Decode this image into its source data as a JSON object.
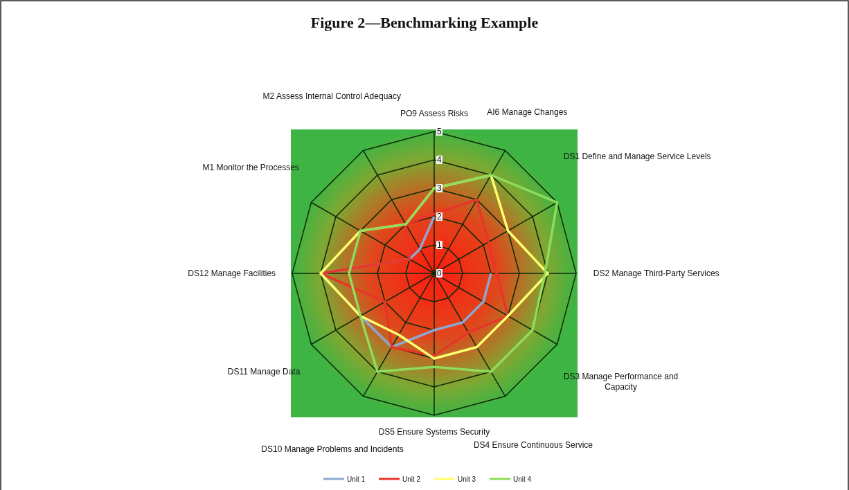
{
  "chart_data": {
    "type": "radar",
    "title": "Figure 2—Benchmarking Example",
    "categories": [
      "PO9 Assess Risks",
      "AI6 Manage Changes",
      "DS1 Define and Manage Service Levels",
      "DS2 Manage Third-Party Services",
      "DS3 Manage Performance and Capacity",
      "DS4 Ensure Continuous Service",
      "DS5 Ensure Systems Security",
      "DS10 Manage Problems and Incidents",
      "DS11 Manage Data",
      "DS12 Manage Facilities",
      "M1 Monitor the Processes",
      "M2 Assess Internal Control Adequacy"
    ],
    "series": [
      {
        "name": "Unit 1",
        "color": "#8fa6cf",
        "values": [
          2,
          null,
          null,
          2,
          2,
          2,
          2,
          3,
          3,
          4,
          1,
          1
        ]
      },
      {
        "name": "Unit 2",
        "color": "#e8352a",
        "values": [
          2.1,
          3,
          2.2,
          2.2,
          3,
          2.4,
          2.9,
          3,
          2,
          4,
          1,
          2
        ]
      },
      {
        "name": "Unit 3",
        "color": "#ffff70",
        "values": [
          3,
          4,
          3,
          4,
          3,
          3,
          3,
          2.5,
          3,
          4,
          3,
          2
        ]
      },
      {
        "name": "Unit 4",
        "color": "#90dc5c",
        "values": [
          3,
          4,
          5,
          3.9,
          4,
          4,
          3.3,
          4,
          3,
          3,
          3,
          2
        ]
      }
    ],
    "ylim": [
      0,
      5
    ],
    "yticks": [
      0,
      1,
      2,
      3,
      4,
      5
    ],
    "grid": true,
    "legend": "bottom",
    "line_style": "solid",
    "marker": "none"
  }
}
